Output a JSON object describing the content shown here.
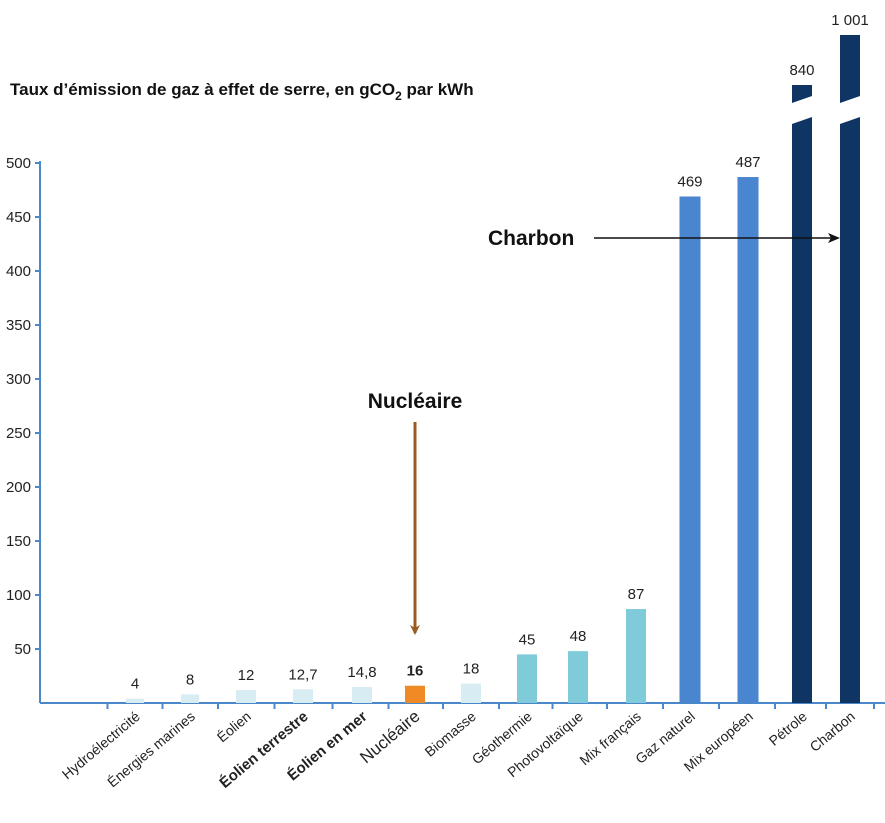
{
  "chart_data": {
    "type": "bar",
    "title_main": "Taux d’émission de gaz à effet de serre, en gCO",
    "title_sub": "2",
    "title_tail": " par kWh",
    "categories": [
      "Hydroélectricité",
      "Énergies marines",
      "Éolien",
      "Éolien terrestre",
      "Éolien en mer",
      "Nucléaire",
      "Biomasse",
      "Géothermie",
      "Photovoltaïque",
      "Mix français",
      "Gaz naturel",
      "Mix européen",
      "Pétrole",
      "Charbon"
    ],
    "values": [
      4,
      8,
      12,
      12.7,
      14.8,
      16,
      18,
      45,
      48,
      87,
      469,
      487,
      840,
      1001
    ],
    "value_labels": [
      "4",
      "8",
      "12",
      "12,7",
      "14,8",
      "16",
      "18",
      "45",
      "48",
      "87",
      "469",
      "487",
      "840",
      "1 001"
    ],
    "y_ticks": [
      "50",
      "100",
      "150",
      "200",
      "250",
      "300",
      "350",
      "400",
      "450",
      "500"
    ],
    "y_tick_values": [
      50,
      100,
      150,
      200,
      250,
      300,
      350,
      400,
      450,
      500
    ],
    "ylim": [
      0,
      500
    ],
    "axis_break": true,
    "bold_categories": [
      "Éolien terrestre",
      "Éolien en mer"
    ],
    "large_categories": [
      "Nucléaire"
    ],
    "highlight_category": "Nucléaire",
    "colors": [
      "#d7edf3",
      "#d7edf3",
      "#d7edf3",
      "#d7edf3",
      "#d7edf3",
      "#f08a24",
      "#d7edf3",
      "#7fcbd9",
      "#7fcbd9",
      "#7fcbd9",
      "#4a86cf",
      "#4a86cf",
      "#0e3563",
      "#0e3563"
    ],
    "highlight_label_color": "#8a5a1e",
    "axis_color": "#4b88c9",
    "annotations": [
      {
        "text": "Nucléaire",
        "target": "Nucléaire",
        "color": "#9b5a22"
      },
      {
        "text": "Charbon",
        "target": "Charbon",
        "color": "#111111"
      }
    ]
  }
}
